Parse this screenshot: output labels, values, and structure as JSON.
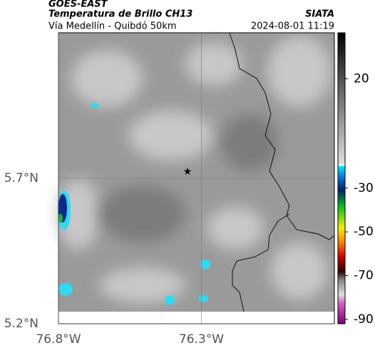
{
  "header": {
    "source": "GOES-EAST",
    "title": "Temperatura de Brillo CH13",
    "brand": "SIATA",
    "subtitle": "Vía Medellín - Quibdó 50km",
    "timestamp": "2024-08-01 11:19"
  },
  "map": {
    "lonlim": [
      -76.8,
      -75.835
    ],
    "latlim": [
      5.2,
      6.2
    ],
    "xticks": [
      {
        "value": -76.8,
        "label": "76.8°W"
      },
      {
        "value": -76.3,
        "label": "76.3°W"
      }
    ],
    "yticks": [
      {
        "value": 5.7,
        "label": "5.7°N"
      },
      {
        "value": 5.2,
        "label": "5.2°N"
      }
    ]
  },
  "colorbar": {
    "lim": [
      41,
      -92
    ],
    "ticks": [
      20,
      -30,
      -50,
      -70,
      -90
    ]
  }
}
